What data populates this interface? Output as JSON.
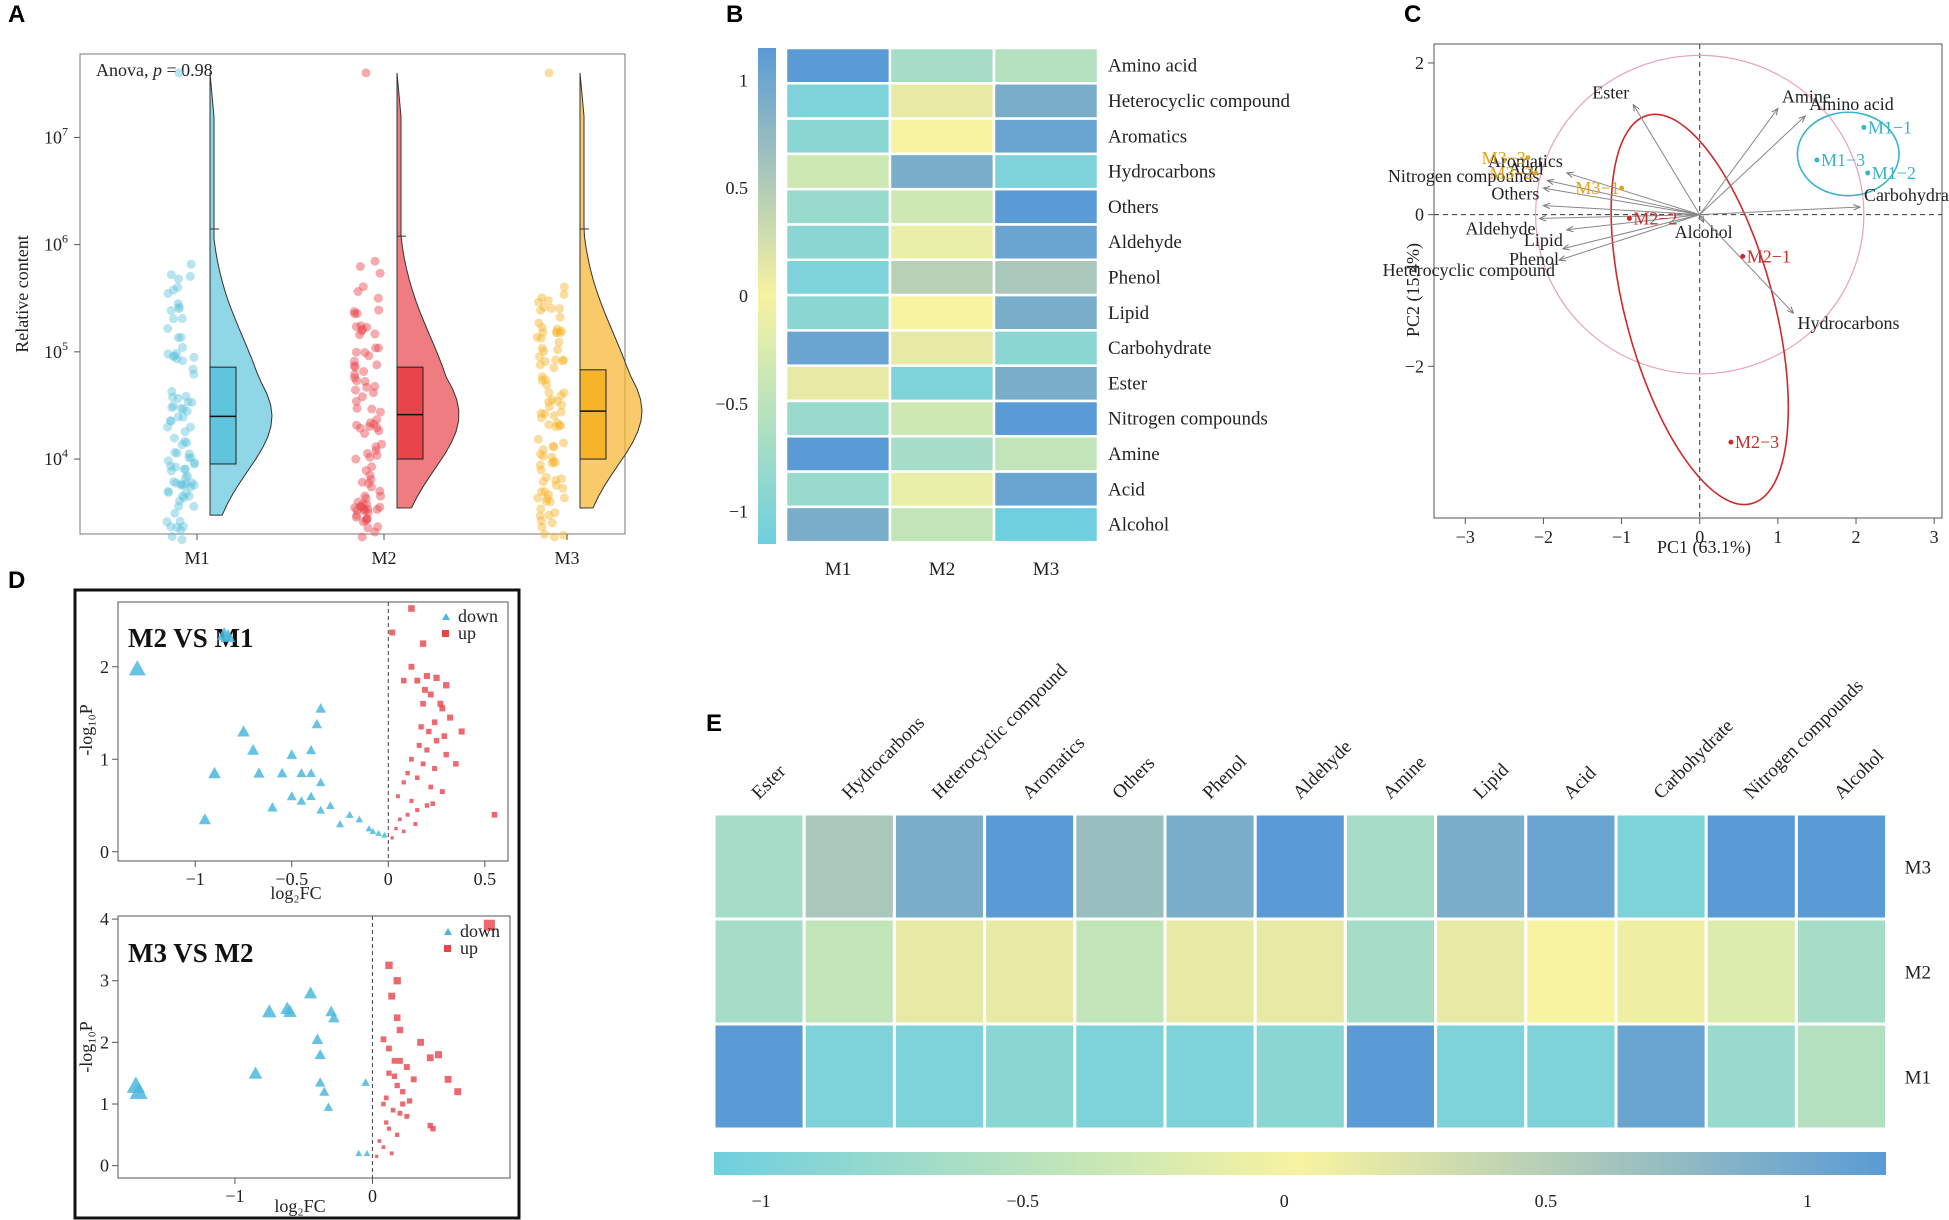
{
  "panel_labels": [
    "A",
    "B",
    "C",
    "D",
    "E"
  ],
  "colors": {
    "m1": "#5fc4dc",
    "m2": "#e8444c",
    "m3": "#f6b42a",
    "heat_low": "#6fcfdf",
    "heat_mid": "#f7f3a0",
    "heat_high": "#5a9bd5",
    "up": "#e8444c",
    "down": "#4bb8de",
    "pca_ellipse_m1": "#39b4c8",
    "pca_ellipse_m2": "#cc2a2a",
    "pca_m3": "#e0a418"
  },
  "chart_data": [
    {
      "id": "A",
      "type": "raincloud",
      "annotation": "Anova, p = 0.98",
      "annotation_parts": {
        "test": "Anova,",
        "p_symbol": "p",
        "p_value": "= 0.98"
      },
      "ylabel": "Relative content",
      "yscale": "log",
      "ylim": [
        2000,
        60000000
      ],
      "yticks": [
        {
          "value": 10000,
          "base": "10",
          "exp": "4"
        },
        {
          "value": 100000,
          "base": "10",
          "exp": "5"
        },
        {
          "value": 1000000,
          "base": "10",
          "exp": "6"
        },
        {
          "value": 10000000,
          "base": "10",
          "exp": "7"
        }
      ],
      "categories": [
        "M1",
        "M2",
        "M3"
      ],
      "boxes": [
        {
          "group": "M1",
          "q1": 9000,
          "median": 25000,
          "q3": 72000
        },
        {
          "group": "M2",
          "q1": 10000,
          "median": 26000,
          "q3": 72000
        },
        {
          "group": "M3",
          "q1": 10000,
          "median": 28000,
          "q3": 68000
        }
      ],
      "violin_range": [
        {
          "group": "M1",
          "min": 3000,
          "max": 40000000
        },
        {
          "group": "M2",
          "min": 3500,
          "max": 40000000
        },
        {
          "group": "M3",
          "min": 3500,
          "max": 40000000
        }
      ],
      "violin_max_marker": [
        {
          "group": "M1",
          "value": 1400000
        },
        {
          "group": "M2",
          "value": 1200000
        },
        {
          "group": "M3",
          "value": 1400000
        }
      ]
    },
    {
      "id": "B",
      "type": "heatmap",
      "rows": [
        "Amino acid",
        "Heterocyclic compound",
        "Aromatics",
        "Hydrocarbons",
        "Others",
        "Aldehyde",
        "Phenol",
        "Lipid",
        "Carbohydrate",
        "Ester",
        "Nitrogen compounds",
        "Amine",
        "Acid",
        "Alcohol"
      ],
      "columns": [
        "M1",
        "M2",
        "M3"
      ],
      "values": [
        [
          1.0,
          -0.6,
          -0.5
        ],
        [
          -0.9,
          0.1,
          0.8
        ],
        [
          -0.8,
          0.0,
          0.9
        ],
        [
          -0.3,
          0.8,
          -0.9
        ],
        [
          -0.7,
          -0.3,
          1.0
        ],
        [
          -0.8,
          -0.1,
          0.9
        ],
        [
          -0.9,
          0.4,
          0.5
        ],
        [
          -0.8,
          0.0,
          0.8
        ],
        [
          0.9,
          0.1,
          -0.8
        ],
        [
          0.1,
          -0.9,
          0.8
        ],
        [
          -0.7,
          -0.3,
          1.0
        ],
        [
          1.0,
          -0.6,
          -0.4
        ],
        [
          -0.7,
          -0.1,
          0.9
        ],
        [
          0.8,
          -0.4,
          -1.0
        ]
      ],
      "colorbar_ticks": [
        "1",
        "0.5",
        "0",
        "−0.5",
        "−1"
      ],
      "colorbar_values": [
        1,
        0.5,
        0,
        -0.5,
        -1
      ]
    },
    {
      "id": "C",
      "type": "biplot",
      "xlabel": "PC1 (63.1%)",
      "ylabel": "PC2 (15.4%)",
      "xlim": [
        -3.4,
        3.1
      ],
      "ylim": [
        -4.0,
        2.25
      ],
      "xticks": [
        -3,
        -2,
        -1,
        0,
        1,
        2,
        3
      ],
      "xtick_labels": [
        "−3",
        "−2",
        "−1",
        "0",
        "1",
        "2",
        "3"
      ],
      "yticks": [
        2,
        0,
        -2
      ],
      "ytick_labels": [
        "2",
        "0",
        "−2"
      ],
      "points": [
        {
          "label": "M1−1",
          "x": 2.1,
          "y": 1.15,
          "group": "M1"
        },
        {
          "label": "M1−3",
          "x": 1.5,
          "y": 0.72,
          "group": "M1"
        },
        {
          "label": "M1−2",
          "x": 2.15,
          "y": 0.55,
          "group": "M1"
        },
        {
          "label": "M2−2",
          "x": -0.9,
          "y": -0.05,
          "group": "M2"
        },
        {
          "label": "M2−1",
          "x": 0.55,
          "y": -0.55,
          "group": "M2"
        },
        {
          "label": "M2−3",
          "x": 0.4,
          "y": -3.0,
          "group": "M2"
        },
        {
          "label": "M3−3",
          "x": -2.2,
          "y": 0.75,
          "group": "M3"
        },
        {
          "label": "M3−2",
          "x": -2.1,
          "y": 0.55,
          "group": "M3"
        },
        {
          "label": "M3−1",
          "x": -1.0,
          "y": 0.35,
          "group": "M3"
        }
      ],
      "vectors": [
        {
          "label": "Ester",
          "x": -0.85,
          "y": 1.45
        },
        {
          "label": "Amine",
          "x": 1.0,
          "y": 1.4
        },
        {
          "label": "Amino acid",
          "x": 1.35,
          "y": 1.3
        },
        {
          "label": "Aromatics",
          "x": -1.7,
          "y": 0.55
        },
        {
          "label": "Acid",
          "x": -1.95,
          "y": 0.45
        },
        {
          "label": "Nitrogen compounds",
          "x": -2.0,
          "y": 0.35
        },
        {
          "label": "Others",
          "x": -2.0,
          "y": 0.12
        },
        {
          "label": "Aldehyde",
          "x": -2.05,
          "y": -0.05
        },
        {
          "label": "Lipid",
          "x": -1.7,
          "y": -0.2
        },
        {
          "label": "Phenol",
          "x": -1.75,
          "y": -0.45
        },
        {
          "label": "Heterocyclic compound",
          "x": -1.8,
          "y": -0.6
        },
        {
          "label": "Alcohol",
          "x": 0.05,
          "y": -0.1
        },
        {
          "label": "Carbohydrate",
          "x": 2.05,
          "y": 0.1
        },
        {
          "label": "Hydrocarbons",
          "x": 1.2,
          "y": -1.3
        }
      ],
      "ellipses": [
        {
          "group": "M1",
          "cx": 1.9,
          "cy": 0.8,
          "rx": 0.65,
          "ry": 0.55,
          "angle": 0
        },
        {
          "group": "M2",
          "cx": 0.0,
          "cy": -1.25,
          "rx": 0.95,
          "ry": 2.65,
          "angle": -15
        }
      ],
      "circle_radius": 2.1
    },
    {
      "id": "D1",
      "type": "volcano",
      "title": "M2 VS M1",
      "xlabel": "log₂FC",
      "ylabel": "-log₁₀P",
      "xlim": [
        -1.4,
        0.62
      ],
      "ylim": [
        -0.1,
        2.7
      ],
      "xticks": [
        -1,
        -0.5,
        0,
        0.5
      ],
      "xtick_labels": [
        "−1",
        "−0.5",
        "0",
        "0.5"
      ],
      "yticks": [
        0,
        1,
        2
      ],
      "ytick_labels": [
        "0",
        "1",
        "2"
      ],
      "legend": [
        "down",
        "up"
      ],
      "down": [
        [
          -1.3,
          1.98
        ],
        [
          -0.83,
          2.33
        ],
        [
          -0.85,
          2.35
        ],
        [
          -0.75,
          1.3
        ],
        [
          -0.7,
          1.1
        ],
        [
          -0.9,
          0.85
        ],
        [
          -0.67,
          0.85
        ],
        [
          -0.55,
          0.85
        ],
        [
          -0.5,
          1.05
        ],
        [
          -0.4,
          1.1
        ],
        [
          -0.35,
          1.55
        ],
        [
          -0.37,
          1.38
        ],
        [
          -0.45,
          0.85
        ],
        [
          -0.4,
          0.85
        ],
        [
          -0.35,
          0.75
        ],
        [
          -0.4,
          0.6
        ],
        [
          -0.3,
          0.5
        ],
        [
          -0.35,
          0.45
        ],
        [
          -0.15,
          0.35
        ],
        [
          -0.25,
          0.3
        ],
        [
          -0.1,
          0.25
        ],
        [
          -0.05,
          0.2
        ],
        [
          -0.2,
          0.4
        ],
        [
          -0.45,
          0.55
        ],
        [
          -0.5,
          0.6
        ],
        [
          -0.95,
          0.35
        ],
        [
          -0.6,
          0.48
        ],
        [
          -0.02,
          0.18
        ],
        [
          -0.08,
          0.22
        ]
      ],
      "up": [
        [
          0.12,
          2.63
        ],
        [
          0.02,
          2.37
        ],
        [
          0.18,
          2.25
        ],
        [
          0.12,
          2.0
        ],
        [
          0.08,
          1.85
        ],
        [
          0.15,
          1.85
        ],
        [
          0.2,
          1.9
        ],
        [
          0.25,
          1.88
        ],
        [
          0.3,
          1.8
        ],
        [
          0.22,
          1.7
        ],
        [
          0.18,
          1.6
        ],
        [
          0.28,
          1.55
        ],
        [
          0.32,
          1.45
        ],
        [
          0.24,
          1.4
        ],
        [
          0.17,
          1.35
        ],
        [
          0.21,
          1.3
        ],
        [
          0.29,
          1.25
        ],
        [
          0.25,
          1.2
        ],
        [
          0.16,
          1.15
        ],
        [
          0.2,
          1.1
        ],
        [
          0.3,
          1.05
        ],
        [
          0.12,
          1.0
        ],
        [
          0.18,
          0.95
        ],
        [
          0.24,
          0.9
        ],
        [
          0.1,
          0.85
        ],
        [
          0.15,
          0.8
        ],
        [
          0.08,
          0.75
        ],
        [
          0.22,
          0.7
        ],
        [
          0.28,
          0.65
        ],
        [
          0.05,
          0.6
        ],
        [
          0.12,
          0.55
        ],
        [
          0.2,
          0.5
        ],
        [
          0.35,
          0.95
        ],
        [
          0.38,
          1.3
        ],
        [
          0.15,
          0.45
        ],
        [
          0.1,
          0.4
        ],
        [
          0.06,
          0.35
        ],
        [
          0.14,
          0.3
        ],
        [
          0.04,
          0.25
        ],
        [
          0.08,
          0.22
        ],
        [
          0.02,
          0.15
        ],
        [
          0.55,
          0.4
        ],
        [
          0.23,
          0.52
        ],
        [
          0.27,
          1.6
        ],
        [
          0.19,
          1.75
        ]
      ]
    },
    {
      "id": "D2",
      "type": "volcano",
      "title": "M3 VS M2",
      "xlabel": "log₂FC",
      "ylabel": "-log₁₀P",
      "xlim": [
        -1.85,
        1.0
      ],
      "ylim": [
        -0.2,
        4.05
      ],
      "xticks": [
        -1,
        0
      ],
      "xtick_labels": [
        "−1",
        "0"
      ],
      "yticks": [
        0,
        1,
        2,
        3,
        4
      ],
      "ytick_labels": [
        "0",
        "1",
        "2",
        "3",
        "4"
      ],
      "legend": [
        "down",
        "up"
      ],
      "down": [
        [
          -1.72,
          1.3
        ],
        [
          -1.7,
          1.2
        ],
        [
          -0.85,
          1.5
        ],
        [
          -0.75,
          2.5
        ],
        [
          -0.62,
          2.55
        ],
        [
          -0.6,
          2.5
        ],
        [
          -0.45,
          2.8
        ],
        [
          -0.3,
          2.5
        ],
        [
          -0.28,
          2.4
        ],
        [
          -0.4,
          2.05
        ],
        [
          -0.38,
          1.8
        ],
        [
          -0.38,
          1.35
        ],
        [
          -0.35,
          1.2
        ],
        [
          -0.32,
          0.95
        ],
        [
          -0.05,
          1.35
        ],
        [
          -0.1,
          0.2
        ],
        [
          -0.04,
          0.2
        ]
      ],
      "up": [
        [
          0.85,
          3.9
        ],
        [
          0.12,
          3.25
        ],
        [
          0.18,
          3.0
        ],
        [
          0.14,
          2.75
        ],
        [
          0.18,
          2.4
        ],
        [
          0.2,
          2.2
        ],
        [
          0.08,
          2.05
        ],
        [
          0.12,
          1.9
        ],
        [
          0.35,
          2.0
        ],
        [
          0.48,
          1.8
        ],
        [
          0.42,
          1.75
        ],
        [
          0.16,
          1.7
        ],
        [
          0.2,
          1.7
        ],
        [
          0.25,
          1.6
        ],
        [
          0.55,
          1.4
        ],
        [
          0.3,
          1.4
        ],
        [
          0.12,
          1.5
        ],
        [
          0.18,
          1.3
        ],
        [
          0.22,
          1.2
        ],
        [
          0.1,
          1.1
        ],
        [
          0.08,
          1.0
        ],
        [
          0.15,
          0.9
        ],
        [
          0.2,
          0.85
        ],
        [
          0.25,
          0.8
        ],
        [
          0.1,
          0.7
        ],
        [
          0.12,
          0.6
        ],
        [
          0.18,
          0.5
        ],
        [
          0.05,
          0.4
        ],
        [
          0.08,
          0.3
        ],
        [
          0.14,
          0.2
        ],
        [
          0.03,
          0.15
        ],
        [
          0.42,
          0.65
        ],
        [
          0.44,
          0.6
        ],
        [
          0.62,
          1.2
        ],
        [
          0.22,
          1.0
        ],
        [
          0.16,
          1.45
        ],
        [
          0.27,
          1.05
        ]
      ]
    },
    {
      "id": "E",
      "type": "heatmap",
      "columns": [
        "Ester",
        "Hydrocarbons",
        "Heterocyclic compound",
        "Aromatics",
        "Others",
        "Phenol",
        "Aldehyde",
        "Amine",
        "Lipid",
        "Acid",
        "Carbohydrate",
        "Nitrogen compounds",
        "Alcohol"
      ],
      "rows": [
        "M3",
        "M2",
        "M1"
      ],
      "values": [
        [
          -0.6,
          0.5,
          0.8,
          1.0,
          0.6,
          0.8,
          1.0,
          -0.6,
          0.8,
          0.9,
          -0.9,
          1.0,
          1.0
        ],
        [
          -0.6,
          -0.4,
          0.1,
          0.1,
          -0.4,
          0.1,
          0.1,
          -0.6,
          0.1,
          0.0,
          0.05,
          -0.2,
          -0.6
        ],
        [
          1.0,
          -0.9,
          -0.9,
          -0.8,
          -0.9,
          -0.9,
          -0.8,
          1.0,
          -0.9,
          -0.9,
          0.9,
          -0.7,
          -0.5
        ]
      ],
      "colorbar_ticks": [
        "−1",
        "−0.5",
        "0",
        "0.5",
        "1"
      ],
      "colorbar_values": [
        -1,
        -0.5,
        0,
        0.5,
        1
      ]
    }
  ]
}
